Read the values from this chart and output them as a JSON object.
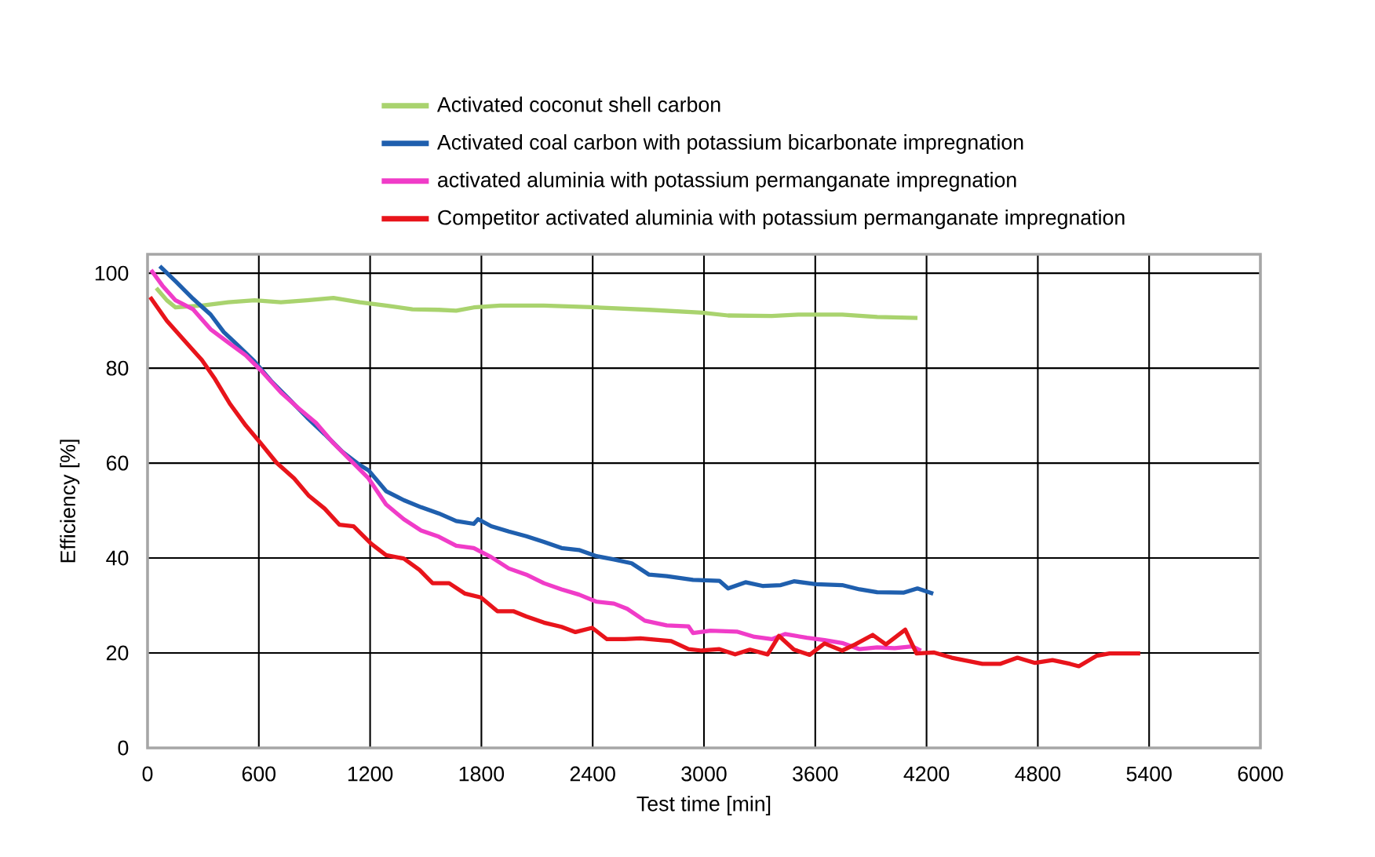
{
  "chart_data": {
    "type": "line",
    "xlabel": "Test time [min]",
    "ylabel": "Efficiency [%]",
    "xlim": [
      0,
      6000
    ],
    "ylim": [
      0,
      104
    ],
    "xticks": [
      0,
      600,
      1200,
      1800,
      2400,
      3000,
      3600,
      4200,
      4800,
      5400,
      6000
    ],
    "yticks": [
      0,
      20,
      40,
      60,
      80,
      100
    ],
    "grid": true,
    "legend": "top",
    "series": [
      {
        "name": "Activated coconut shell carbon",
        "color": "#a9d36e",
        "x": [
          47,
          104,
          151,
          293,
          435,
          577,
          719,
          860,
          1002,
          1144,
          1286,
          1428,
          1570,
          1664,
          1759,
          1901,
          2137,
          2421,
          2704,
          2988,
          3130,
          3366,
          3508,
          3745,
          3934,
          4151
        ],
        "values": [
          96.9,
          94.3,
          92.8,
          93.2,
          93.9,
          94.3,
          93.9,
          94.3,
          94.8,
          93.9,
          93.2,
          92.4,
          92.3,
          92.1,
          92.8,
          93.2,
          93.2,
          92.8,
          92.3,
          91.7,
          91.1,
          91.0,
          91.3,
          91.3,
          90.8,
          90.6
        ]
      },
      {
        "name": "Activated coal carbon with potassium bicarbonate impregnation",
        "color": "#1f5fae",
        "x": [
          66,
          151,
          246,
          340,
          411,
          482,
          577,
          671,
          766,
          860,
          955,
          1050,
          1144,
          1191,
          1286,
          1381,
          1475,
          1570,
          1664,
          1759,
          1782,
          1853,
          1948,
          2042,
          2137,
          2232,
          2326,
          2421,
          2515,
          2610,
          2704,
          2799,
          2941,
          3083,
          3130,
          3224,
          3319,
          3414,
          3485,
          3603,
          3745,
          3839,
          3934,
          4075,
          4151,
          4236
        ],
        "values": [
          101.5,
          98.3,
          94.6,
          91.3,
          87.6,
          85.0,
          81.4,
          77.1,
          73.4,
          69.6,
          66.1,
          62.4,
          59.6,
          58.5,
          54.1,
          52.2,
          50.7,
          49.4,
          47.8,
          47.2,
          48.2,
          46.7,
          45.6,
          44.6,
          43.4,
          42.1,
          41.7,
          40.4,
          39.7,
          38.9,
          36.5,
          36.2,
          35.4,
          35.2,
          33.6,
          34.9,
          34.1,
          34.3,
          35.1,
          34.5,
          34.3,
          33.4,
          32.8,
          32.7,
          33.6,
          32.5
        ]
      },
      {
        "name": "activated aluminia with potassium permanganate impregnation",
        "color": "#f03cc8",
        "x": [
          19,
          80,
          151,
          246,
          340,
          435,
          530,
          624,
          719,
          813,
          908,
          1002,
          1097,
          1191,
          1286,
          1381,
          1475,
          1570,
          1664,
          1759,
          1853,
          1948,
          2042,
          2137,
          2232,
          2326,
          2421,
          2515,
          2586,
          2681,
          2799,
          2917,
          2941,
          3035,
          3177,
          3272,
          3366,
          3437,
          3555,
          3650,
          3745,
          3839,
          3934,
          4028,
          4123,
          4170
        ],
        "values": [
          100.7,
          97.4,
          94.3,
          92.4,
          88.2,
          85.4,
          82.7,
          79.0,
          74.9,
          71.6,
          68.5,
          64.2,
          60.5,
          56.8,
          51.3,
          48.2,
          45.8,
          44.5,
          42.6,
          42.1,
          40.2,
          37.8,
          36.5,
          34.7,
          33.4,
          32.3,
          30.8,
          30.4,
          29.3,
          26.8,
          25.8,
          25.6,
          24.2,
          24.7,
          24.5,
          23.4,
          22.9,
          24.0,
          23.2,
          22.7,
          22.1,
          20.8,
          21.2,
          21.0,
          21.4,
          20.5
        ]
      },
      {
        "name": "Competitor activated aluminia with potassium permanganate impregnation",
        "color": "#e8141b",
        "x": [
          14,
          104,
          199,
          293,
          364,
          444,
          530,
          610,
          695,
          790,
          870,
          955,
          1035,
          1111,
          1206,
          1286,
          1381,
          1466,
          1537,
          1626,
          1712,
          1797,
          1886,
          1972,
          2042,
          2137,
          2232,
          2307,
          2397,
          2477,
          2572,
          2657,
          2823,
          2917,
          2988,
          3083,
          3168,
          3248,
          3343,
          3404,
          3485,
          3570,
          3650,
          3745,
          3815,
          3910,
          3981,
          4085,
          4146,
          4241,
          4336,
          4501,
          4596,
          4690,
          4785,
          4879,
          4974,
          5021,
          5116,
          5187,
          5352
        ],
        "values": [
          95.0,
          90.0,
          85.8,
          81.7,
          77.7,
          72.5,
          67.9,
          64.2,
          60.1,
          56.8,
          53.1,
          50.4,
          47.0,
          46.7,
          43.0,
          40.6,
          39.9,
          37.5,
          34.7,
          34.7,
          32.5,
          31.7,
          28.8,
          28.8,
          27.7,
          26.4,
          25.5,
          24.4,
          25.3,
          22.9,
          22.9,
          23.1,
          22.5,
          20.8,
          20.5,
          20.8,
          19.7,
          20.7,
          19.7,
          23.6,
          20.7,
          19.6,
          22.0,
          20.5,
          21.8,
          23.8,
          21.8,
          24.9,
          19.9,
          20.1,
          19.0,
          17.7,
          17.7,
          19.0,
          17.9,
          18.5,
          17.7,
          17.2,
          19.4,
          19.9,
          19.9
        ]
      }
    ]
  }
}
